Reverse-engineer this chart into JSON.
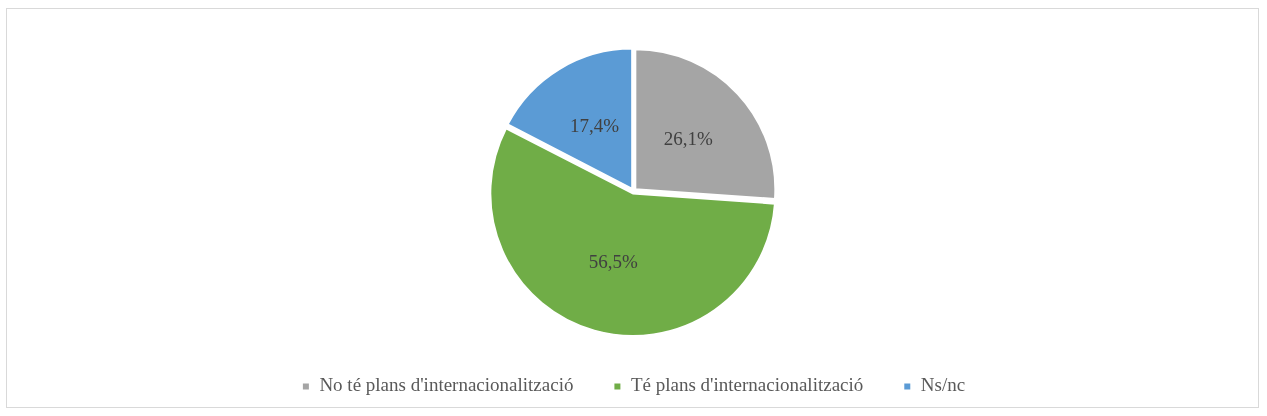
{
  "chart_data": {
    "type": "pie",
    "categories": [
      "No té plans d'internacionalització",
      "Té plans d'internacionalització",
      "Ns/nc"
    ],
    "values": [
      26.1,
      56.5,
      17.4
    ],
    "colors": [
      "#a5a5a5",
      "#70ad47",
      "#5b9bd5"
    ],
    "value_labels": [
      "26,1%",
      "56,5%",
      "17,4%"
    ],
    "legend": "bottom"
  }
}
